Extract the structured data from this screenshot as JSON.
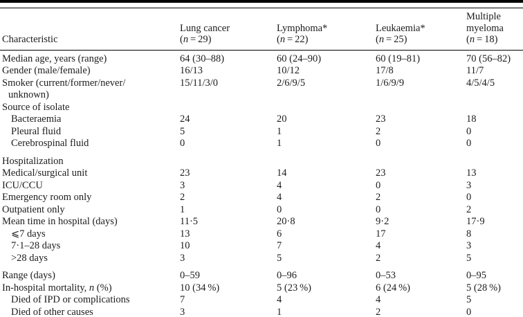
{
  "page": {
    "background": "#ffffff",
    "text_color": "#1c1c1c",
    "rule_color": "#000000"
  },
  "table": {
    "header": {
      "characteristic": "Characteristic",
      "columns": [
        {
          "name": "Lung cancer",
          "count_html": "(<i>n</i> = 29)"
        },
        {
          "name": "Lymphoma*",
          "count_html": "(<i>n</i> = 22)"
        },
        {
          "name": "Leukaemia*",
          "count_html": "(<i>n</i> = 25)"
        },
        {
          "name": "Multiple myeloma",
          "count_html": "(<i>n</i> = 18)"
        }
      ]
    },
    "rows": [
      {
        "label": "Median age, years (range)",
        "values": [
          "64 (30–88)",
          "60 (24–90)",
          "60 (19–81)",
          "70 (56–82)"
        ]
      },
      {
        "label": "Gender (male/female)",
        "values": [
          "16/13",
          "10/12",
          "17/8",
          "11/7"
        ]
      },
      {
        "label": "Smoker (current/former/never/",
        "label2": "unknown)",
        "values": [
          "15/11/3/0",
          "2/6/9/5",
          "1/6/9/9",
          "4/5/4/5"
        ]
      },
      {
        "label": "Source of isolate",
        "values": [
          "",
          "",
          "",
          ""
        ]
      },
      {
        "label": "Bacteraemia",
        "indent": 1,
        "values": [
          "24",
          "20",
          "23",
          "18"
        ]
      },
      {
        "label": "Pleural fluid",
        "indent": 1,
        "values": [
          "5",
          "1",
          "2",
          "0"
        ]
      },
      {
        "label": "Cerebrospinal fluid",
        "indent": 1,
        "values": [
          "0",
          "1",
          "0",
          "0"
        ]
      },
      {
        "label": "Hospitalization",
        "gap": true,
        "values": [
          "",
          "",
          "",
          ""
        ]
      },
      {
        "label": "Medical/surgical unit",
        "values": [
          "23",
          "14",
          "23",
          "13"
        ]
      },
      {
        "label": "ICU/CCU",
        "values": [
          "3",
          "4",
          "0",
          "3"
        ]
      },
      {
        "label": "Emergency room only",
        "values": [
          "2",
          "4",
          "2",
          "0"
        ]
      },
      {
        "label": "Outpatient only",
        "values": [
          "1",
          "0",
          "0",
          "2"
        ]
      },
      {
        "label": "Mean time in hospital (days)",
        "values": [
          "11·5",
          "20·8",
          "9·2",
          "17·9"
        ]
      },
      {
        "label": "⩽7 days",
        "indent": 1,
        "values": [
          "13",
          "6",
          "17",
          "8"
        ]
      },
      {
        "label": "7·1–28 days",
        "indent": 1,
        "values": [
          "10",
          "7",
          "4",
          "3"
        ]
      },
      {
        "label": ">28 days",
        "indent": 1,
        "values": [
          "3",
          "5",
          "2",
          "5"
        ]
      },
      {
        "label": "Range (days)",
        "gap": true,
        "values": [
          "0–59",
          "0–96",
          "0–53",
          "0–95"
        ]
      },
      {
        "label": "In-hospital mortality, n (%)",
        "label_html": "In-hospital mortality, <i>n</i> (%)",
        "values": [
          "10 (34 %)",
          "5 (23 %)",
          "6 (24 %)",
          "5 (28 %)"
        ]
      },
      {
        "label": "Died of IPD or complications",
        "indent": 1,
        "values": [
          "7",
          "4",
          "4",
          "5"
        ]
      },
      {
        "label": "Died of other causes",
        "indent": 1,
        "values": [
          "3",
          "1",
          "2",
          "0"
        ]
      }
    ]
  }
}
